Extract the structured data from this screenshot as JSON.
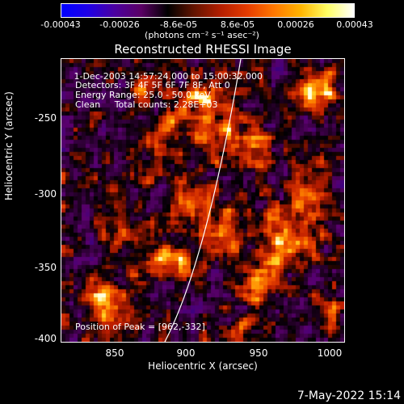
{
  "colorbar": {
    "ticks": [
      "-0.00043",
      "-0.00026",
      "-8.6e-05",
      "8.6e-05",
      "0.00026",
      "0.00043"
    ],
    "colors": [
      "#0000ff",
      "#1e00e6",
      "#4b00a0",
      "#5a0064",
      "#000000",
      "#641400",
      "#b41e00",
      "#e63c00",
      "#ff7800",
      "#ffb400",
      "#ffff64",
      "#ffffff"
    ]
  },
  "units": "(photons cm⁻² s⁻¹ asec⁻²)",
  "title": "Reconstructed RHESSI Image",
  "annotations": {
    "line1": " 1-Dec-2003 14:57:24.000 to 15:00:32.000",
    "line2": "Detectors: 3F 4F 5F 6F 7F 8F, Att 0",
    "line3": "Energy Range: 25.0 - 50.0 keV",
    "line4": "Clean     Total counts: 2.28E+03",
    "peak": "Position of Peak = [962,-332]"
  },
  "axes": {
    "xlabel": "Heliocentric X (arcsec)",
    "ylabel": "Heliocentric Y (arcsec)",
    "xticks": [
      "850",
      "900",
      "950",
      "1000"
    ],
    "yticks": [
      "-250",
      "-300",
      "-350",
      "-400"
    ]
  },
  "datestamp": "7-May-2022 15:14"
}
